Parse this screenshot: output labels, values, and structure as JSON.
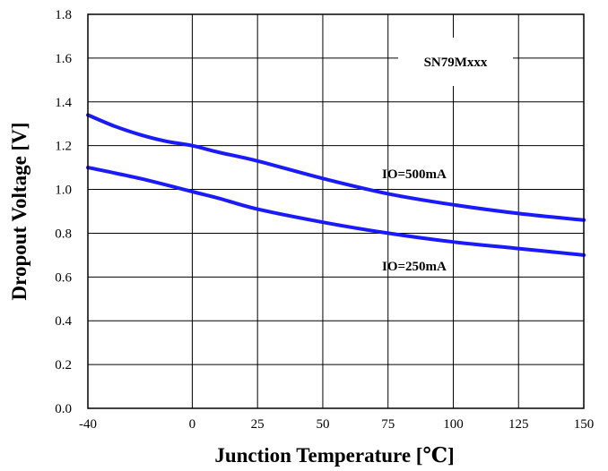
{
  "chart_data": {
    "type": "line",
    "title": "",
    "xlabel": "Junction Temperature [℃]",
    "ylabel": "Dropout Voltage [V]",
    "xlim": [
      -40,
      150
    ],
    "ylim": [
      0.0,
      1.8
    ],
    "xticks": [
      -40,
      0,
      25,
      50,
      75,
      100,
      125,
      150
    ],
    "xtick_labels": [
      "-40",
      "0",
      "25",
      "50",
      "75",
      "100",
      "125",
      "150"
    ],
    "yticks": [
      0.0,
      0.2,
      0.4,
      0.6,
      0.8,
      1.0,
      1.2,
      1.4,
      1.6,
      1.8
    ],
    "ytick_labels": [
      "0.0",
      "0.2",
      "0.4",
      "0.6",
      "0.8",
      "1.0",
      "1.2",
      "1.4",
      "1.6",
      "1.8"
    ],
    "grid": true,
    "legend_text": "SN79Mxxx",
    "series": [
      {
        "name": "IO=500mA",
        "color": "#1a1aff",
        "x": [
          -40,
          -30,
          -20,
          -10,
          0,
          10,
          25,
          50,
          75,
          100,
          125,
          150
        ],
        "y": [
          1.34,
          1.29,
          1.25,
          1.22,
          1.2,
          1.17,
          1.13,
          1.05,
          0.98,
          0.93,
          0.89,
          0.86
        ]
      },
      {
        "name": "IO=250mA",
        "color": "#1a1aff",
        "x": [
          -40,
          -20,
          0,
          10,
          25,
          50,
          75,
          100,
          125,
          150
        ],
        "y": [
          1.1,
          1.05,
          0.99,
          0.96,
          0.91,
          0.85,
          0.8,
          0.76,
          0.73,
          0.7
        ]
      }
    ]
  }
}
